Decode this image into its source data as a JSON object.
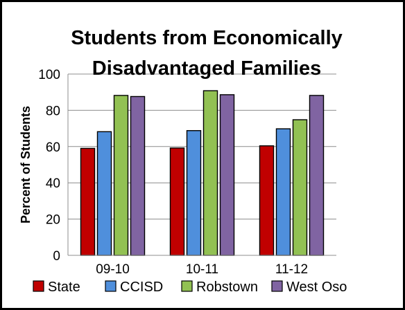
{
  "chart_data": {
    "type": "bar",
    "title_lines": [
      "Students from Economically",
      "Disadvantaged Families"
    ],
    "xlabel": "",
    "ylabel": "Percent of Students",
    "ylim": [
      0,
      100
    ],
    "yticks": [
      0,
      20,
      40,
      60,
      80,
      100
    ],
    "grid": true,
    "legend_position": "bottom",
    "categories": [
      "09-10",
      "10-11",
      "11-12"
    ],
    "series": [
      {
        "name": "State",
        "color": "#c00000",
        "values": [
          59,
          59.2,
          60.4
        ]
      },
      {
        "name": "CCISD",
        "color": "#4f8fdc",
        "values": [
          68.2,
          68.8,
          69.8
        ]
      },
      {
        "name": "Robstown",
        "color": "#92c153",
        "values": [
          88.2,
          90.8,
          74.8
        ]
      },
      {
        "name": "West Oso",
        "color": "#8064a2",
        "values": [
          87.6,
          88.6,
          88.2
        ]
      }
    ]
  }
}
